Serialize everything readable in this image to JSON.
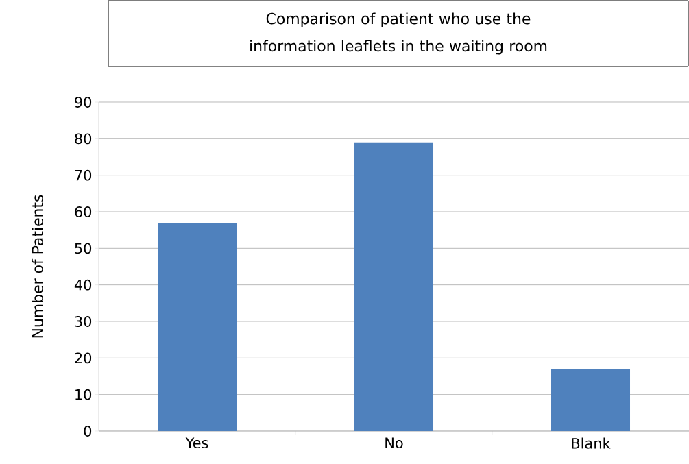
{
  "chart_data": {
    "type": "bar",
    "title": "Comparison of patient who use the information leaflets in the waiting room",
    "ylabel": "Number of Patients",
    "categories": [
      "Yes",
      "No",
      "Blank"
    ],
    "values": [
      57,
      79,
      17
    ],
    "color": "#4f81bd",
    "ylim": [
      0,
      90
    ],
    "yticks": [
      0,
      10,
      20,
      30,
      40,
      50,
      60,
      70,
      80,
      90
    ],
    "grid": "y"
  }
}
